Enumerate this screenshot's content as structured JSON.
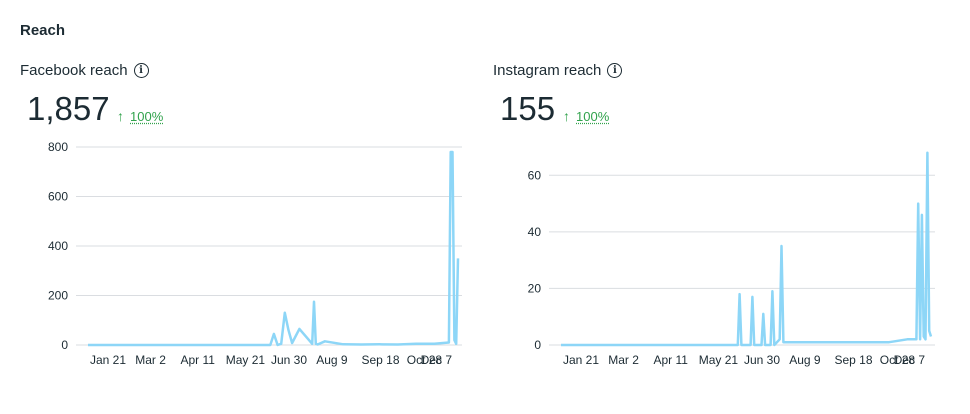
{
  "section": {
    "title": "Reach"
  },
  "colors": {
    "line": "#8dd6f7",
    "grid": "#dadde1",
    "positive": "#31a24c"
  },
  "panels": [
    {
      "label": "Facebook reach",
      "info_icon": "info-icon",
      "total": "1,857",
      "change_arrow": "↑",
      "change": "100%"
    },
    {
      "label": "Instagram reach",
      "info_icon": "info-icon",
      "total": "155",
      "change_arrow": "↑",
      "change": "100%"
    }
  ],
  "chart_data": [
    {
      "type": "line",
      "title": "Facebook reach",
      "xlabel": "",
      "ylabel": "",
      "ylim": [
        0,
        800
      ],
      "yticks": [
        0,
        200,
        400,
        600,
        800
      ],
      "xticks": [
        "Jan 21",
        "Mar 2",
        "Apr 11",
        "May 21",
        "Jun 30",
        "Aug 9",
        "Sep 18",
        "Oct 28",
        "Dec 7"
      ],
      "grid": true,
      "x": [
        0,
        90,
        100,
        102,
        104,
        106,
        108,
        110,
        112,
        116,
        123,
        124,
        125,
        126,
        130,
        140,
        150,
        160,
        170,
        180,
        190,
        198,
        199,
        200,
        201,
        202,
        203
      ],
      "values": [
        0,
        0,
        0,
        45,
        0,
        5,
        130,
        60,
        8,
        65,
        5,
        175,
        5,
        2,
        15,
        3,
        2,
        3,
        2,
        5,
        5,
        10,
        780,
        780,
        20,
        5,
        350
      ]
    },
    {
      "type": "line",
      "title": "Instagram reach",
      "xlabel": "",
      "ylabel": "",
      "ylim": [
        0,
        70
      ],
      "yticks": [
        0,
        20,
        40,
        60
      ],
      "xticks": [
        "Jan 21",
        "Mar 2",
        "Apr 11",
        "May 21",
        "Jun 30",
        "Aug 9",
        "Sep 18",
        "Oct 28",
        "Dec 7"
      ],
      "grid": true,
      "x": [
        0,
        97,
        98,
        99,
        100,
        104,
        105,
        106,
        110,
        111,
        112,
        115,
        116,
        117,
        120,
        121,
        122,
        125,
        130,
        140,
        150,
        160,
        170,
        180,
        190,
        195,
        196,
        197,
        198,
        199,
        200,
        201,
        202,
        203
      ],
      "values": [
        0,
        0,
        18,
        0,
        0,
        0,
        17,
        0,
        0,
        11,
        0,
        0,
        19,
        0,
        2,
        35,
        1,
        1,
        1,
        1,
        1,
        1,
        1,
        1,
        2,
        2,
        50,
        2,
        46,
        3,
        2,
        68,
        5,
        3
      ]
    }
  ]
}
